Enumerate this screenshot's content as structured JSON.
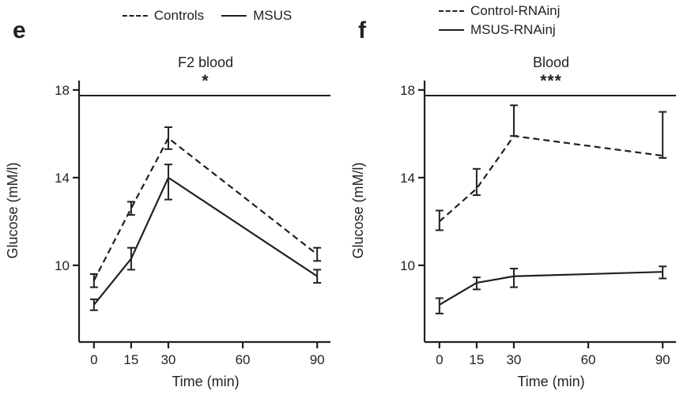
{
  "figure": {
    "background": "#ffffff",
    "ink": "#231f20"
  },
  "panels": [
    {
      "label": "e"
    },
    {
      "label": "f"
    }
  ],
  "chart_data": [
    {
      "type": "line",
      "title": "F2 blood",
      "significance": "*",
      "xlabel": "Time (min)",
      "ylabel": "Glucose (mM/l)",
      "x": [
        0,
        15,
        30,
        90
      ],
      "xticks": [
        0,
        15,
        30,
        60,
        90
      ],
      "yticks": [
        10,
        14,
        18
      ],
      "xlim": [
        -6,
        96
      ],
      "ylim": [
        6.5,
        18.5
      ],
      "grid": false,
      "legend_position": "top",
      "series": [
        {
          "name": "Controls",
          "style": "dashed",
          "values": [
            9.3,
            12.6,
            15.8,
            10.5
          ],
          "err_lo": [
            0.3,
            0.3,
            0.5,
            0.3
          ],
          "err_hi": [
            0.3,
            0.3,
            0.5,
            0.3
          ]
        },
        {
          "name": "MSUS",
          "style": "solid",
          "values": [
            8.2,
            10.3,
            14.0,
            9.5
          ],
          "err_lo": [
            0.25,
            0.5,
            1.0,
            0.3
          ],
          "err_hi": [
            0.25,
            0.5,
            0.6,
            0.3
          ]
        }
      ]
    },
    {
      "type": "line",
      "title": "Blood",
      "significance": "***",
      "xlabel": "Time (min)",
      "ylabel": "Glucose (mM/l)",
      "x": [
        0,
        15,
        30,
        90
      ],
      "xticks": [
        0,
        15,
        30,
        60,
        90
      ],
      "yticks": [
        10,
        14,
        18
      ],
      "xlim": [
        -6,
        96
      ],
      "ylim": [
        6.5,
        18.5
      ],
      "grid": false,
      "legend_position": "top",
      "series": [
        {
          "name": "Control-RNAinj",
          "style": "dashed",
          "values": [
            12.0,
            13.5,
            15.9,
            15.0
          ],
          "err_lo": [
            0.4,
            0.3,
            0,
            0.1
          ],
          "err_hi": [
            0.5,
            0.9,
            1.4,
            2.0
          ]
        },
        {
          "name": "MSUS-RNAinj",
          "style": "solid",
          "values": [
            8.2,
            9.2,
            9.5,
            9.7
          ],
          "err_lo": [
            0.4,
            0.3,
            0.5,
            0.3
          ],
          "err_hi": [
            0.3,
            0.25,
            0.35,
            0.25
          ]
        }
      ]
    }
  ]
}
